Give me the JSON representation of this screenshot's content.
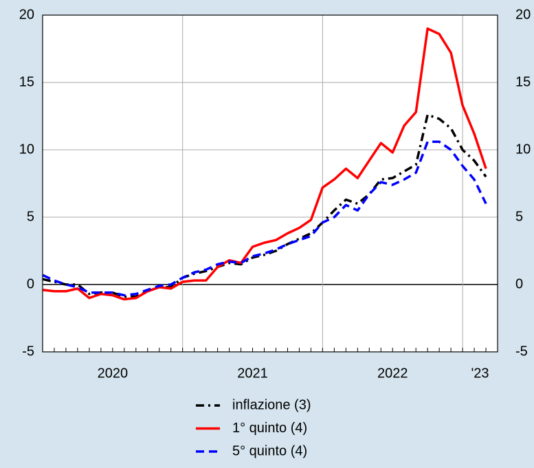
{
  "chart_data": {
    "type": "line",
    "x": [
      2020,
      2020.083,
      2020.167,
      2020.25,
      2020.333,
      2020.417,
      2020.5,
      2020.583,
      2020.667,
      2020.75,
      2020.833,
      2020.917,
      2021,
      2021.083,
      2021.167,
      2021.25,
      2021.333,
      2021.417,
      2021.5,
      2021.583,
      2021.667,
      2021.75,
      2021.833,
      2021.917,
      2022,
      2022.083,
      2022.167,
      2022.25,
      2022.333,
      2022.417,
      2022.5,
      2022.583,
      2022.667,
      2022.75,
      2022.833,
      2022.917,
      2023,
      2023.083,
      2023.167
    ],
    "series": [
      {
        "name": "inflazione (3)",
        "color": "#000000",
        "dash": "dashdot",
        "values": [
          0.4,
          0.2,
          0.0,
          0.0,
          -0.7,
          -0.6,
          -0.6,
          -0.9,
          -0.9,
          -0.5,
          -0.2,
          -0.2,
          0.5,
          0.8,
          1.0,
          1.3,
          1.6,
          1.5,
          2.0,
          2.2,
          2.5,
          3.0,
          3.4,
          3.8,
          4.6,
          5.5,
          6.3,
          6.0,
          6.7,
          7.8,
          7.9,
          8.4,
          8.9,
          12.6,
          12.3,
          11.6,
          10.0,
          9.2,
          8.0
        ]
      },
      {
        "name": "1° quinto (4)",
        "color": "#ff0000",
        "dash": "solid",
        "values": [
          -0.4,
          -0.5,
          -0.5,
          -0.3,
          -1.0,
          -0.7,
          -0.8,
          -1.1,
          -1.0,
          -0.5,
          -0.2,
          -0.3,
          0.2,
          0.3,
          0.3,
          1.3,
          1.8,
          1.6,
          2.8,
          3.1,
          3.3,
          3.8,
          4.2,
          4.8,
          7.2,
          7.8,
          8.6,
          7.9,
          9.2,
          10.5,
          9.8,
          11.8,
          12.8,
          19.0,
          18.6,
          17.2,
          13.3,
          11.2,
          8.6
        ]
      },
      {
        "name": "5° quinto (4)",
        "color": "#0000ff",
        "dash": "dashed",
        "values": [
          0.7,
          0.3,
          0.0,
          -0.2,
          -0.6,
          -0.6,
          -0.6,
          -0.8,
          -0.7,
          -0.4,
          -0.1,
          0.0,
          0.5,
          0.9,
          1.1,
          1.5,
          1.7,
          1.6,
          2.1,
          2.3,
          2.6,
          3.0,
          3.3,
          3.6,
          4.6,
          5.0,
          5.9,
          5.5,
          6.7,
          7.6,
          7.4,
          7.8,
          8.3,
          10.6,
          10.6,
          10.0,
          8.8,
          7.8,
          6.0
        ]
      }
    ],
    "xlim": [
      2020,
      2023.25
    ],
    "xticks": [
      2021,
      2022,
      2023
    ],
    "xlabels": [
      {
        "value": 2020.5,
        "label": "2020"
      },
      {
        "value": 2021.5,
        "label": "2021"
      },
      {
        "value": 2022.5,
        "label": "2022"
      },
      {
        "value": 2023.125,
        "label": "'23"
      }
    ],
    "ylim": [
      -5,
      20
    ],
    "yticks": [
      -5,
      0,
      5,
      10,
      15,
      20
    ],
    "y2lim": [
      -5,
      20
    ],
    "y2ticks": [
      -5,
      0,
      5,
      10,
      15,
      20
    ],
    "grid": true
  }
}
